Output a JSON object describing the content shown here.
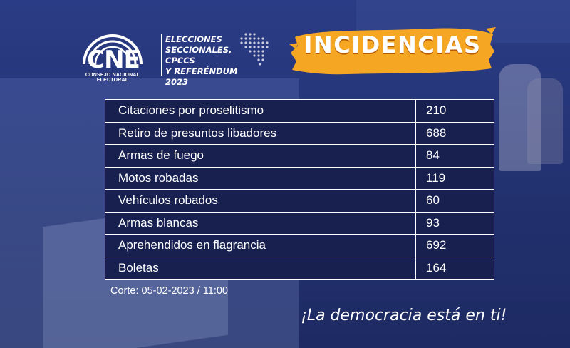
{
  "brand": {
    "logo_text": "CNE",
    "logo_caption": "CONSEJO NACIONAL ELECTORAL",
    "election_lines": [
      "ELECCIONES",
      "SECCIONALES, CPCCS",
      "Y REFERÉNDUM 2023"
    ]
  },
  "banner": {
    "title": "INCIDENCIAS",
    "color": "#f5a623"
  },
  "table": {
    "rows": [
      {
        "label": "Citaciones por proselitismo",
        "value": "210"
      },
      {
        "label": "Retiro de presuntos libadores",
        "value": "688"
      },
      {
        "label": "Armas de fuego",
        "value": "84"
      },
      {
        "label": "Motos robadas",
        "value": "119"
      },
      {
        "label": "Vehículos robados",
        "value": "60"
      },
      {
        "label": "Armas blancas",
        "value": "93"
      },
      {
        "label": "Aprehendidos en flagrancia",
        "value": "692"
      },
      {
        "label": "Boletas",
        "value": "164"
      }
    ]
  },
  "footer": {
    "cutoff": "Corte: 05-02-2023 / 11:00",
    "slogan": "¡La democracia está en ti!"
  },
  "colors": {
    "background": "#22316f",
    "table_bg": "#17204f",
    "accent": "#f5a623"
  }
}
